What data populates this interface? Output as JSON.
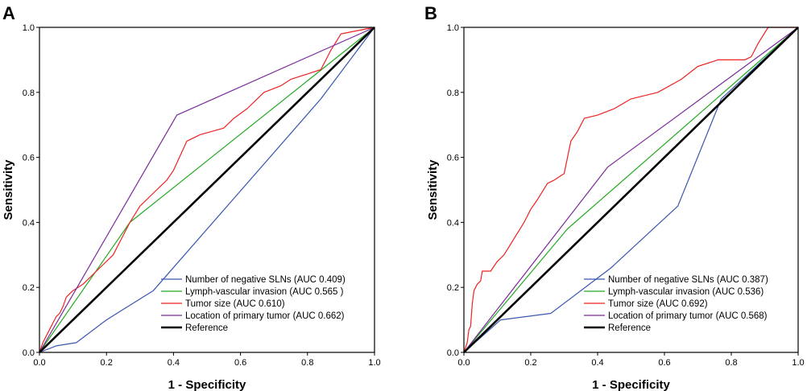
{
  "chart_data": [
    {
      "type": "line",
      "panel_label": "A",
      "xlabel": "1 - Specificity",
      "ylabel": "Sensitivity",
      "xlim": [
        0,
        1
      ],
      "ylim": [
        0,
        1
      ],
      "xticks": [
        "0.0",
        "0.2",
        "0.4",
        "0.6",
        "0.8",
        "1.0"
      ],
      "yticks": [
        "0.0",
        "0.2",
        "0.4",
        "0.6",
        "0.8",
        "1.0"
      ],
      "legend_position": "bottom-right",
      "series": [
        {
          "name": "Number of negative SLNs (AUC 0.409)",
          "color": "#3a56b0",
          "width": 1.2,
          "x": [
            0,
            0.05,
            0.11,
            0.2,
            0.34,
            0.84,
            1
          ],
          "y": [
            0,
            0.02,
            0.03,
            0.1,
            0.19,
            0.78,
            1
          ]
        },
        {
          "name": "Lymph-vascular invasion (AUC 0.565 )",
          "color": "#22aa22",
          "width": 1.2,
          "x": [
            0,
            0.27,
            1
          ],
          "y": [
            0,
            0.4,
            1
          ]
        },
        {
          "name": "Tumor size (AUC 0.610)",
          "color": "#ee2222",
          "width": 1.2,
          "x": [
            0,
            0.01,
            0.02,
            0.03,
            0.04,
            0.05,
            0.06,
            0.07,
            0.08,
            0.1,
            0.13,
            0.17,
            0.22,
            0.24,
            0.27,
            0.3,
            0.34,
            0.38,
            0.4,
            0.44,
            0.48,
            0.55,
            0.58,
            0.62,
            0.67,
            0.72,
            0.75,
            0.78,
            0.81,
            0.84,
            0.87,
            0.9,
            0.95,
            1
          ],
          "y": [
            0,
            0.03,
            0.05,
            0.07,
            0.09,
            0.11,
            0.12,
            0.14,
            0.17,
            0.19,
            0.21,
            0.25,
            0.3,
            0.34,
            0.4,
            0.45,
            0.49,
            0.53,
            0.56,
            0.65,
            0.67,
            0.69,
            0.72,
            0.75,
            0.8,
            0.82,
            0.84,
            0.85,
            0.86,
            0.87,
            0.93,
            0.98,
            0.99,
            1
          ]
        },
        {
          "name": "Location of primary tumor (AUC 0.662)",
          "color": "#7a2a9a",
          "width": 1.2,
          "x": [
            0,
            0.41,
            1
          ],
          "y": [
            0,
            0.73,
            1
          ]
        },
        {
          "name": "Reference",
          "color": "#000000",
          "width": 2.6,
          "x": [
            0,
            1
          ],
          "y": [
            0,
            1
          ]
        }
      ]
    },
    {
      "type": "line",
      "panel_label": "B",
      "xlabel": "1 - Specificity",
      "ylabel": "Sensitivity",
      "xlim": [
        0,
        1
      ],
      "ylim": [
        0,
        1
      ],
      "xticks": [
        "0.0",
        "0.2",
        "0.4",
        "0.6",
        "0.8",
        "1.0"
      ],
      "yticks": [
        "0.0",
        "0.2",
        "0.4",
        "0.6",
        "0.8",
        "1.0"
      ],
      "legend_position": "bottom-right",
      "series": [
        {
          "name": "Number of negative SLNs (AUC 0.387)",
          "color": "#3a56b0",
          "width": 1.2,
          "x": [
            0,
            0.11,
            0.26,
            0.44,
            0.64,
            0.77,
            1
          ],
          "y": [
            0,
            0.1,
            0.12,
            0.26,
            0.45,
            0.78,
            1
          ]
        },
        {
          "name": "Lymph-vascular invasion (AUC 0.536)",
          "color": "#22aa22",
          "width": 1.2,
          "x": [
            0,
            0.31,
            1
          ],
          "y": [
            0,
            0.38,
            1
          ]
        },
        {
          "name": "Tumor size (AUC 0.692)",
          "color": "#ee2222",
          "width": 1.2,
          "x": [
            0,
            0.01,
            0.015,
            0.02,
            0.025,
            0.03,
            0.04,
            0.05,
            0.055,
            0.08,
            0.1,
            0.12,
            0.15,
            0.18,
            0.2,
            0.22,
            0.25,
            0.27,
            0.3,
            0.32,
            0.34,
            0.36,
            0.4,
            0.45,
            0.5,
            0.58,
            0.65,
            0.7,
            0.76,
            0.8,
            0.84,
            0.86,
            0.88,
            0.91,
            1
          ],
          "y": [
            0,
            0.03,
            0.07,
            0.08,
            0.15,
            0.19,
            0.21,
            0.22,
            0.25,
            0.25,
            0.28,
            0.3,
            0.35,
            0.4,
            0.44,
            0.47,
            0.52,
            0.53,
            0.55,
            0.65,
            0.68,
            0.72,
            0.73,
            0.75,
            0.78,
            0.8,
            0.84,
            0.88,
            0.9,
            0.9,
            0.9,
            0.91,
            0.95,
            1,
            1
          ]
        },
        {
          "name": "Location of primary tumor (AUC 0.568)",
          "color": "#7a2a9a",
          "width": 1.2,
          "x": [
            0,
            0.43,
            1
          ],
          "y": [
            0,
            0.57,
            1
          ]
        },
        {
          "name": "Reference",
          "color": "#000000",
          "width": 2.6,
          "x": [
            0,
            1
          ],
          "y": [
            0,
            1
          ]
        }
      ]
    }
  ]
}
